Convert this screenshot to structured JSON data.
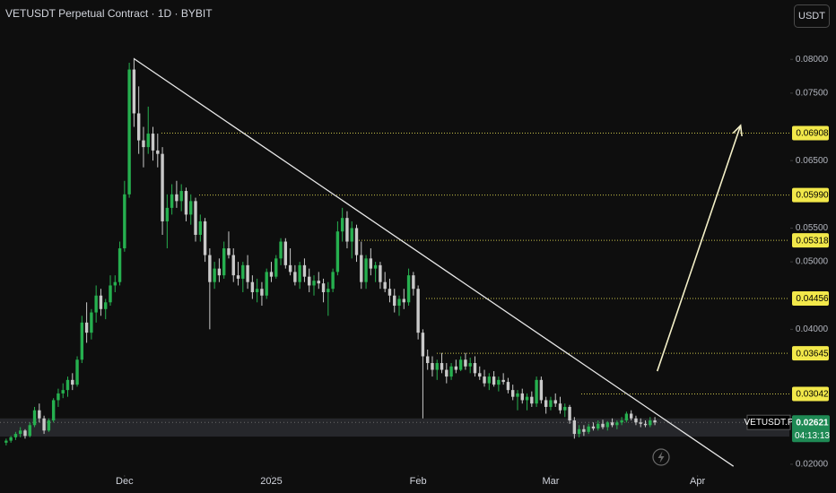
{
  "chart_data": {
    "type": "candlestick",
    "title": "VETUSDT Perpetual Contract · 1D · BYBIT",
    "currency": "USDT",
    "symbol": "VETUSDT.P",
    "last_price": 0.02621,
    "countdown": "04:13:13",
    "up_color": "#26b04f",
    "down_color": "#c9c9c9",
    "ylim": [
      0.0184,
      0.0888
    ],
    "xlim": [
      -1.3,
      165.4
    ],
    "yticks": [
      {
        "value": 0.08,
        "label": "0.08000"
      },
      {
        "value": 0.075,
        "label": "0.07500"
      },
      {
        "value": 0.065,
        "label": "0.06500"
      },
      {
        "value": 0.055,
        "label": "0.05500"
      },
      {
        "value": 0.05,
        "label": "0.05000"
      },
      {
        "value": 0.04,
        "label": "0.04000"
      },
      {
        "value": 0.02,
        "label": "0.02000"
      }
    ],
    "xticks": [
      {
        "value": 25,
        "label": "Dec"
      },
      {
        "value": 56,
        "label": "2025"
      },
      {
        "value": 87,
        "label": "Feb"
      },
      {
        "value": 115,
        "label": "Mar"
      },
      {
        "value": 146,
        "label": "Apr"
      }
    ],
    "levels": [
      {
        "value": 0.06908,
        "label": "0.06908"
      },
      {
        "value": 0.0599,
        "label": "0.05990"
      },
      {
        "value": 0.05318,
        "label": "0.05318"
      },
      {
        "value": 0.04456,
        "label": "0.04456"
      },
      {
        "value": 0.03645,
        "label": "0.03645"
      },
      {
        "value": 0.03042,
        "label": "0.03042"
      }
    ],
    "zone": [
      0.0241,
      0.0268
    ],
    "trendline": {
      "x": [
        27,
        153.6
      ],
      "y": [
        0.0801,
        0.0197
      ]
    },
    "arrow": {
      "x": [
        137.5,
        155.1
      ],
      "y": [
        0.0338,
        0.0702
      ]
    },
    "ohlc": [
      [
        0.0232,
        0.0238,
        0.0228,
        0.0235
      ],
      [
        0.0235,
        0.0242,
        0.0232,
        0.024
      ],
      [
        0.024,
        0.0248,
        0.0236,
        0.0245
      ],
      [
        0.0245,
        0.0255,
        0.024,
        0.025
      ],
      [
        0.025,
        0.0252,
        0.0238,
        0.0242
      ],
      [
        0.0242,
        0.0262,
        0.024,
        0.0258
      ],
      [
        0.0258,
        0.0285,
        0.0255,
        0.028
      ],
      [
        0.028,
        0.029,
        0.0262,
        0.0268
      ],
      [
        0.0268,
        0.0272,
        0.0245,
        0.025
      ],
      [
        0.025,
        0.0268,
        0.0248,
        0.0265
      ],
      [
        0.0265,
        0.0298,
        0.0262,
        0.0295
      ],
      [
        0.0295,
        0.0312,
        0.0285,
        0.0305
      ],
      [
        0.0305,
        0.032,
        0.0298,
        0.031
      ],
      [
        0.031,
        0.033,
        0.03,
        0.0325
      ],
      [
        0.0325,
        0.0335,
        0.031,
        0.0318
      ],
      [
        0.0318,
        0.036,
        0.0315,
        0.0355
      ],
      [
        0.0355,
        0.042,
        0.035,
        0.041
      ],
      [
        0.041,
        0.044,
        0.038,
        0.0395
      ],
      [
        0.0395,
        0.043,
        0.0385,
        0.0425
      ],
      [
        0.0425,
        0.0465,
        0.041,
        0.045
      ],
      [
        0.045,
        0.046,
        0.042,
        0.043
      ],
      [
        0.043,
        0.0445,
        0.0415,
        0.044
      ],
      [
        0.044,
        0.048,
        0.0435,
        0.0465
      ],
      [
        0.0465,
        0.048,
        0.0455,
        0.047
      ],
      [
        0.047,
        0.053,
        0.0465,
        0.052
      ],
      [
        0.052,
        0.062,
        0.0515,
        0.06
      ],
      [
        0.06,
        0.0795,
        0.0595,
        0.0785
      ],
      [
        0.0785,
        0.0802,
        0.07,
        0.072
      ],
      [
        0.072,
        0.076,
        0.066,
        0.068
      ],
      [
        0.068,
        0.07,
        0.064,
        0.067
      ],
      [
        0.067,
        0.073,
        0.066,
        0.069
      ],
      [
        0.069,
        0.07,
        0.065,
        0.0665
      ],
      [
        0.0665,
        0.069,
        0.064,
        0.066
      ],
      [
        0.066,
        0.067,
        0.054,
        0.056
      ],
      [
        0.056,
        0.06,
        0.052,
        0.058
      ],
      [
        0.058,
        0.0615,
        0.057,
        0.06
      ],
      [
        0.06,
        0.062,
        0.058,
        0.059
      ],
      [
        0.059,
        0.0615,
        0.0575,
        0.0605
      ],
      [
        0.0605,
        0.061,
        0.056,
        0.057
      ],
      [
        0.057,
        0.06,
        0.0555,
        0.059
      ],
      [
        0.059,
        0.0595,
        0.053,
        0.054
      ],
      [
        0.054,
        0.057,
        0.053,
        0.056
      ],
      [
        0.056,
        0.0565,
        0.05,
        0.051
      ],
      [
        0.051,
        0.052,
        0.04,
        0.047
      ],
      [
        0.047,
        0.05,
        0.046,
        0.049
      ],
      [
        0.049,
        0.0505,
        0.047,
        0.048
      ],
      [
        0.048,
        0.053,
        0.0475,
        0.052
      ],
      [
        0.052,
        0.0545,
        0.0505,
        0.051
      ],
      [
        0.051,
        0.052,
        0.047,
        0.048
      ],
      [
        0.048,
        0.05,
        0.0465,
        0.0475
      ],
      [
        0.0475,
        0.05,
        0.0455,
        0.0495
      ],
      [
        0.0495,
        0.051,
        0.046,
        0.047
      ],
      [
        0.047,
        0.048,
        0.0445,
        0.0455
      ],
      [
        0.0455,
        0.0475,
        0.044,
        0.046
      ],
      [
        0.046,
        0.047,
        0.0435,
        0.045
      ],
      [
        0.045,
        0.049,
        0.0445,
        0.0485
      ],
      [
        0.0485,
        0.05,
        0.047,
        0.0478
      ],
      [
        0.0478,
        0.051,
        0.0475,
        0.0505
      ],
      [
        0.0505,
        0.0535,
        0.0495,
        0.053
      ],
      [
        0.053,
        0.0535,
        0.049,
        0.0495
      ],
      [
        0.0495,
        0.052,
        0.048,
        0.0485
      ],
      [
        0.0485,
        0.0495,
        0.0465,
        0.047
      ],
      [
        0.047,
        0.05,
        0.046,
        0.0495
      ],
      [
        0.0495,
        0.0505,
        0.047,
        0.0478
      ],
      [
        0.0478,
        0.049,
        0.0455,
        0.0465
      ],
      [
        0.0465,
        0.048,
        0.045,
        0.0472
      ],
      [
        0.0472,
        0.0485,
        0.046,
        0.0468
      ],
      [
        0.0468,
        0.0475,
        0.044,
        0.0455
      ],
      [
        0.0455,
        0.047,
        0.042,
        0.046
      ],
      [
        0.046,
        0.049,
        0.0455,
        0.0485
      ],
      [
        0.0485,
        0.056,
        0.048,
        0.0545
      ],
      [
        0.0545,
        0.058,
        0.053,
        0.0565
      ],
      [
        0.0565,
        0.0575,
        0.052,
        0.053
      ],
      [
        0.053,
        0.056,
        0.0505,
        0.055
      ],
      [
        0.055,
        0.0555,
        0.05,
        0.051
      ],
      [
        0.051,
        0.053,
        0.046,
        0.047
      ],
      [
        0.047,
        0.051,
        0.046,
        0.0505
      ],
      [
        0.0505,
        0.052,
        0.048,
        0.049
      ],
      [
        0.049,
        0.05,
        0.047,
        0.0495
      ],
      [
        0.0495,
        0.05,
        0.046,
        0.047
      ],
      [
        0.047,
        0.0485,
        0.0455,
        0.046
      ],
      [
        0.046,
        0.0475,
        0.044,
        0.045
      ],
      [
        0.045,
        0.046,
        0.0425,
        0.0435
      ],
      [
        0.0435,
        0.045,
        0.042,
        0.0445
      ],
      [
        0.0445,
        0.046,
        0.043,
        0.044
      ],
      [
        0.044,
        0.049,
        0.0435,
        0.048
      ],
      [
        0.048,
        0.0485,
        0.045,
        0.046
      ],
      [
        0.046,
        0.0465,
        0.0385,
        0.0395
      ],
      [
        0.0395,
        0.04,
        0.0268,
        0.036
      ],
      [
        0.036,
        0.037,
        0.034,
        0.035
      ],
      [
        0.035,
        0.036,
        0.033,
        0.034
      ],
      [
        0.034,
        0.0355,
        0.0325,
        0.035
      ],
      [
        0.035,
        0.0365,
        0.0335,
        0.034
      ],
      [
        0.034,
        0.035,
        0.032,
        0.033
      ],
      [
        0.033,
        0.035,
        0.0325,
        0.0345
      ],
      [
        0.0345,
        0.0355,
        0.0335,
        0.034
      ],
      [
        0.034,
        0.036,
        0.0338,
        0.0355
      ],
      [
        0.0355,
        0.0365,
        0.034,
        0.0345
      ],
      [
        0.0345,
        0.0358,
        0.0335,
        0.035
      ],
      [
        0.035,
        0.036,
        0.033,
        0.0335
      ],
      [
        0.0335,
        0.0345,
        0.0325,
        0.033
      ],
      [
        0.033,
        0.034,
        0.0315,
        0.032
      ],
      [
        0.032,
        0.0335,
        0.031,
        0.033
      ],
      [
        0.033,
        0.0338,
        0.0315,
        0.0318
      ],
      [
        0.0318,
        0.033,
        0.0308,
        0.0325
      ],
      [
        0.0325,
        0.0335,
        0.0318,
        0.0322
      ],
      [
        0.0322,
        0.0328,
        0.0305,
        0.031
      ],
      [
        0.031,
        0.0318,
        0.0295,
        0.03
      ],
      [
        0.03,
        0.031,
        0.028,
        0.0305
      ],
      [
        0.0305,
        0.0312,
        0.029,
        0.0295
      ],
      [
        0.0295,
        0.0305,
        0.028,
        0.03
      ],
      [
        0.03,
        0.0308,
        0.0285,
        0.029
      ],
      [
        0.029,
        0.033,
        0.0285,
        0.0325
      ],
      [
        0.0325,
        0.033,
        0.029,
        0.0295
      ],
      [
        0.0295,
        0.03,
        0.0275,
        0.0285
      ],
      [
        0.0285,
        0.03,
        0.028,
        0.0295
      ],
      [
        0.0295,
        0.0305,
        0.0285,
        0.029
      ],
      [
        0.029,
        0.03,
        0.0275,
        0.028
      ],
      [
        0.028,
        0.029,
        0.027,
        0.0285
      ],
      [
        0.0285,
        0.0288,
        0.026,
        0.0265
      ],
      [
        0.0265,
        0.027,
        0.0238,
        0.0245
      ],
      [
        0.0245,
        0.0258,
        0.024,
        0.0252
      ],
      [
        0.0252,
        0.0258,
        0.0242,
        0.0248
      ],
      [
        0.0248,
        0.026,
        0.0245,
        0.0256
      ],
      [
        0.0256,
        0.0262,
        0.025,
        0.0253
      ],
      [
        0.0253,
        0.0265,
        0.025,
        0.026
      ],
      [
        0.026,
        0.0266,
        0.0252,
        0.0255
      ],
      [
        0.0255,
        0.0264,
        0.025,
        0.0262
      ],
      [
        0.0262,
        0.0268,
        0.0255,
        0.0258
      ],
      [
        0.0258,
        0.0265,
        0.0252,
        0.0262
      ],
      [
        0.0262,
        0.027,
        0.0258,
        0.0265
      ],
      [
        0.0265,
        0.0278,
        0.0262,
        0.0275
      ],
      [
        0.0275,
        0.028,
        0.0265,
        0.0268
      ],
      [
        0.0268,
        0.0272,
        0.0258,
        0.0262
      ],
      [
        0.0262,
        0.0268,
        0.0255,
        0.026
      ],
      [
        0.026,
        0.0265,
        0.0255,
        0.0258
      ],
      [
        0.0258,
        0.027,
        0.0255,
        0.0265
      ],
      [
        0.0265,
        0.027,
        0.0258,
        0.02621
      ]
    ]
  }
}
